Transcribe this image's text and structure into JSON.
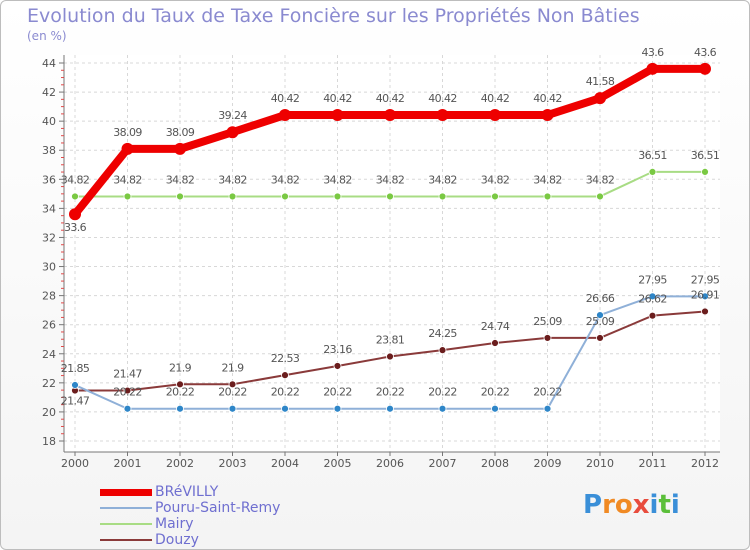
{
  "title": "Evolution du Taux de Taxe Foncière sur les Propriétés Non Bâties",
  "unit": "(en %)",
  "logo": {
    "text": "Proxiti",
    "letters": [
      "P",
      "r",
      "o",
      "x",
      "i",
      "t",
      "i"
    ],
    "colors": [
      "#3a8fd8",
      "#f08a24",
      "#f08a24",
      "#e84c3d",
      "#3a8fd8",
      "#5bbf3a",
      "#3a8fd8"
    ]
  },
  "chart_data": {
    "type": "line",
    "title": "Evolution du Taux de Taxe Foncière sur les Propriétés Non Bâties",
    "ylabel": "(en %)",
    "xlabel": "",
    "categories": [
      "2000",
      "2001",
      "2002",
      "2003",
      "2004",
      "2005",
      "2006",
      "2007",
      "2008",
      "2009",
      "2010",
      "2011",
      "2012"
    ],
    "yticks": [
      "18",
      "20",
      "22",
      "24",
      "26",
      "28",
      "30",
      "32",
      "34",
      "36",
      "38",
      "40",
      "42",
      "44"
    ],
    "ylim": [
      18,
      44
    ],
    "legend_position": "bottom-left",
    "series": [
      {
        "name": "BRéVILLY",
        "color": "#ee0000",
        "marker": "#ee0000",
        "values": [
          33.6,
          38.09,
          38.09,
          39.24,
          40.42,
          40.42,
          40.42,
          40.42,
          40.42,
          40.42,
          41.58,
          43.6,
          43.6
        ],
        "labels": [
          "33.6",
          "38.09",
          "38.09",
          "39.24",
          "40.42",
          "40.42",
          "40.42",
          "40.42",
          "40.42",
          "40.42",
          "41.58",
          "43.6",
          "43.6"
        ]
      },
      {
        "name": "Pouru-Saint-Remy",
        "color": "#8fb0d8",
        "marker": "#2e86c8",
        "values": [
          21.85,
          20.22,
          20.22,
          20.22,
          20.22,
          20.22,
          20.22,
          20.22,
          20.22,
          20.22,
          26.66,
          27.95,
          27.95
        ],
        "labels": [
          "21.85",
          "20.22",
          "20.22",
          "20.22",
          "20.22",
          "20.22",
          "20.22",
          "20.22",
          "20.22",
          "20.22",
          "26.66",
          "27.95",
          "27.95"
        ]
      },
      {
        "name": "Mairy",
        "color": "#a8dc84",
        "marker": "#7ac943",
        "values": [
          34.82,
          34.82,
          34.82,
          34.82,
          34.82,
          34.82,
          34.82,
          34.82,
          34.82,
          34.82,
          34.82,
          36.51,
          36.51
        ],
        "labels": [
          "34.82",
          "34.82",
          "34.82",
          "34.82",
          "34.82",
          "34.82",
          "34.82",
          "34.82",
          "34.82",
          "34.82",
          "34.82",
          "36.51",
          "36.51"
        ]
      },
      {
        "name": "Douzy",
        "color": "#8a3a3a",
        "marker": "#6b1d1d",
        "values": [
          21.47,
          21.47,
          21.9,
          21.9,
          22.53,
          23.16,
          23.81,
          24.25,
          24.74,
          25.09,
          25.09,
          26.62,
          26.91
        ],
        "labels": [
          "21.47",
          "21.47",
          "21.9",
          "21.9",
          "22.53",
          "23.16",
          "23.81",
          "24.25",
          "24.74",
          "25.09",
          "25.09",
          "26.62",
          "26.91"
        ]
      }
    ]
  }
}
